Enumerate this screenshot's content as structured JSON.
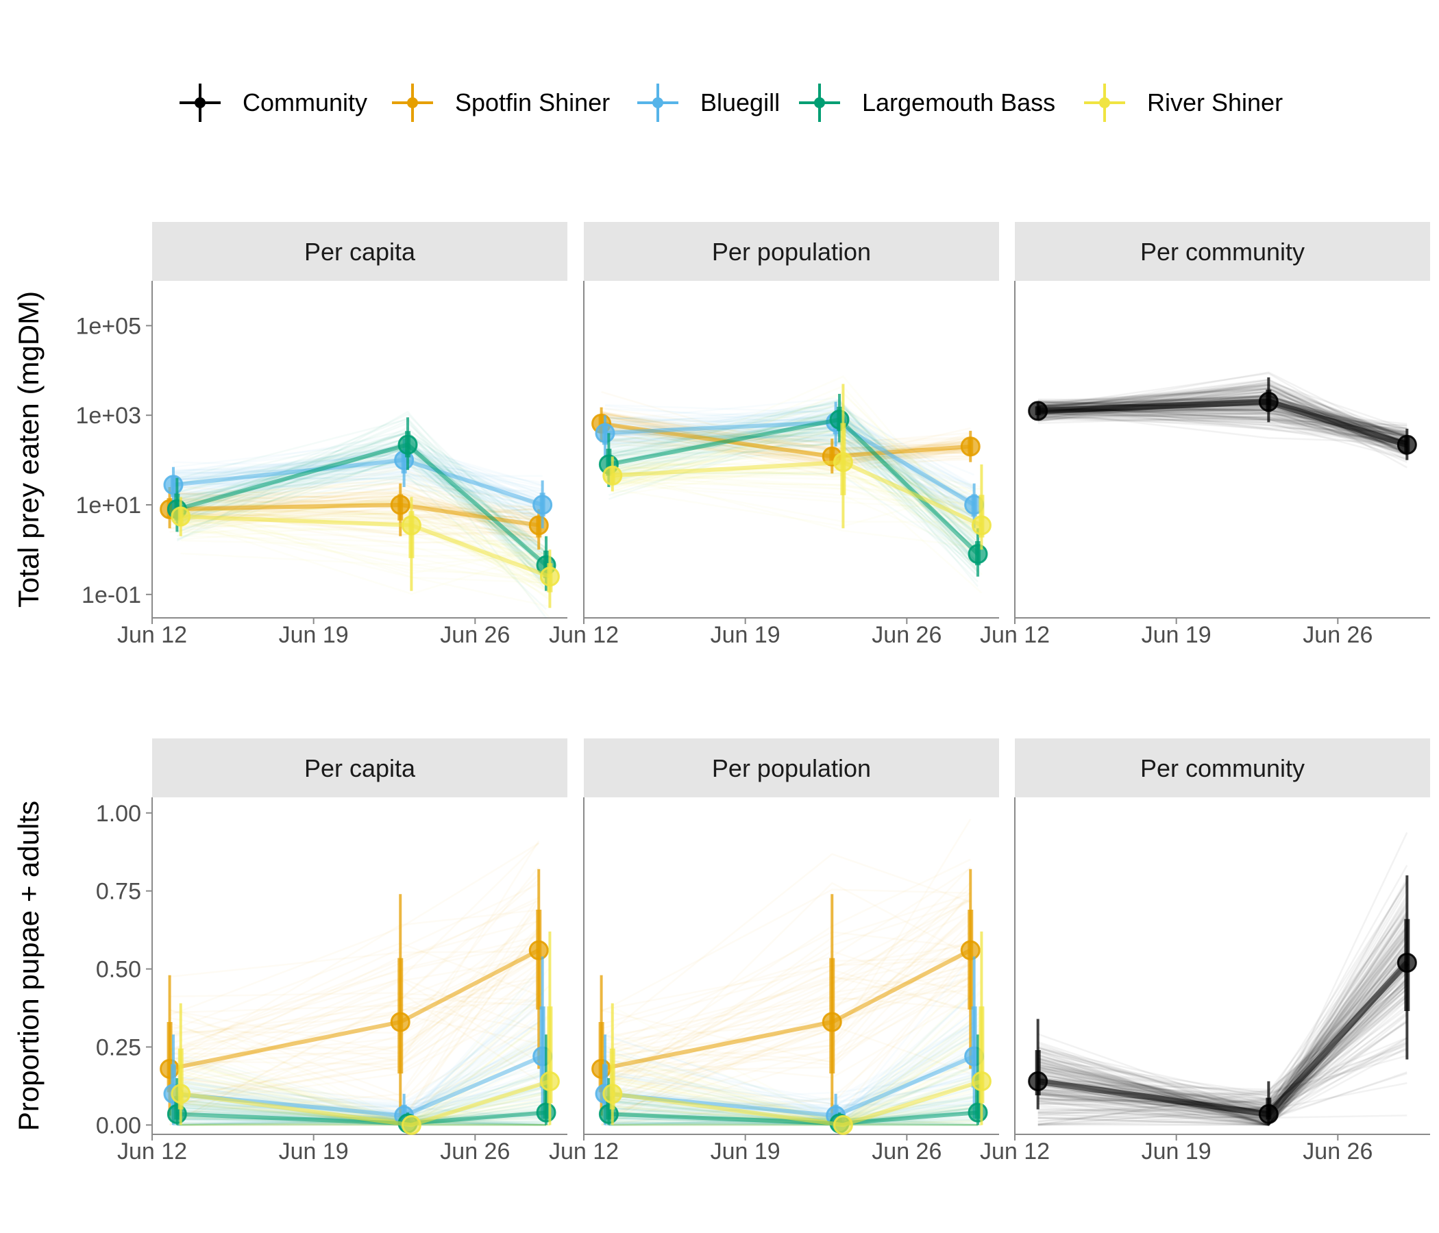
{
  "legend": {
    "items": [
      {
        "label": "Community",
        "color": "#000000"
      },
      {
        "label": "Spotfin Shiner",
        "color": "#E69F00"
      },
      {
        "label": "Bluegill",
        "color": "#56B4E9"
      },
      {
        "label": "Largemouth Bass",
        "color": "#009E73"
      },
      {
        "label": "River Shiner",
        "color": "#F0E442"
      }
    ]
  },
  "x_axis": {
    "ticks": [
      "Jun 12",
      "Jun 19",
      "Jun 26"
    ],
    "tick_dates": [
      "2021-06-12",
      "2021-06-19",
      "2021-06-26"
    ],
    "range": [
      "2021-06-12",
      "2021-06-30"
    ]
  },
  "rows": [
    {
      "ylabel": "Total prey eaten (mgDM)",
      "scale": "log10",
      "ylim": [
        0.03,
        1000000
      ],
      "yticks": [
        0.1,
        10,
        1000,
        100000
      ],
      "ytick_labels": [
        "1e-01",
        "1e+01",
        "1e+03",
        "1e+05"
      ]
    },
    {
      "ylabel": "Proportion pupae + adults",
      "scale": "linear",
      "ylim": [
        -0.03,
        1.05
      ],
      "yticks": [
        0,
        0.25,
        0.5,
        0.75,
        1
      ],
      "ytick_labels": [
        "0.00",
        "0.25",
        "0.50",
        "0.75",
        "1.00"
      ]
    }
  ],
  "chart_data": [
    {
      "type": "line",
      "panel": "Per capita",
      "ylabel": "Total prey eaten (mgDM)",
      "scale": "log10",
      "series": [
        {
          "name": "Spotfin Shiner",
          "color": "#E69F00",
          "x": [
            "2021-06-13",
            "2021-06-23",
            "2021-06-29"
          ],
          "y": [
            8,
            10,
            3.5
          ],
          "lo": [
            3,
            2,
            1
          ],
          "hi": [
            25,
            30,
            8
          ]
        },
        {
          "name": "Bluegill",
          "color": "#56B4E9",
          "x": [
            "2021-06-13",
            "2021-06-23",
            "2021-06-29"
          ],
          "y": [
            28,
            100,
            10
          ],
          "lo": [
            8,
            25,
            3
          ],
          "hi": [
            70,
            300,
            35
          ]
        },
        {
          "name": "Largemouth Bass",
          "color": "#009E73",
          "x": [
            "2021-06-13",
            "2021-06-23",
            "2021-06-29"
          ],
          "y": [
            8,
            220,
            0.45
          ],
          "lo": [
            2.5,
            60,
            0.12
          ],
          "hi": [
            40,
            900,
            2
          ]
        },
        {
          "name": "River Shiner",
          "color": "#F0E442",
          "x": [
            "2021-06-13",
            "2021-06-23",
            "2021-06-29"
          ],
          "y": [
            5.5,
            3.5,
            0.25
          ],
          "lo": [
            2,
            0.12,
            0.05
          ],
          "hi": [
            15,
            15,
            1
          ]
        }
      ]
    },
    {
      "type": "line",
      "panel": "Per population",
      "ylabel": "Total prey eaten (mgDM)",
      "scale": "log10",
      "series": [
        {
          "name": "Spotfin Shiner",
          "color": "#E69F00",
          "x": [
            "2021-06-13",
            "2021-06-23",
            "2021-06-29"
          ],
          "y": [
            650,
            120,
            200
          ],
          "lo": [
            250,
            50,
            90
          ],
          "hi": [
            1500,
            300,
            450
          ]
        },
        {
          "name": "Bluegill",
          "color": "#56B4E9",
          "x": [
            "2021-06-13",
            "2021-06-23",
            "2021-06-29"
          ],
          "y": [
            400,
            700,
            10
          ],
          "lo": [
            120,
            200,
            3
          ],
          "hi": [
            1000,
            2000,
            30
          ]
        },
        {
          "name": "Largemouth Bass",
          "color": "#009E73",
          "x": [
            "2021-06-13",
            "2021-06-23",
            "2021-06-29"
          ],
          "y": [
            80,
            800,
            0.8
          ],
          "lo": [
            25,
            250,
            0.25
          ],
          "hi": [
            400,
            3000,
            3
          ]
        },
        {
          "name": "River Shiner",
          "color": "#F0E442",
          "x": [
            "2021-06-13",
            "2021-06-23",
            "2021-06-29"
          ],
          "y": [
            45,
            90,
            3.5
          ],
          "lo": [
            20,
            3,
            1
          ],
          "hi": [
            120,
            5000,
            80
          ]
        }
      ]
    },
    {
      "type": "line",
      "panel": "Per community",
      "ylabel": "Total prey eaten (mgDM)",
      "scale": "log10",
      "series": [
        {
          "name": "Community",
          "color": "#000000",
          "x": [
            "2021-06-13",
            "2021-06-23",
            "2021-06-29"
          ],
          "y": [
            1250,
            2000,
            220
          ],
          "lo": [
            800,
            700,
            100
          ],
          "hi": [
            2000,
            7000,
            500
          ]
        }
      ]
    },
    {
      "type": "line",
      "panel": "Per capita",
      "ylabel": "Proportion pupae + adults",
      "scale": "linear",
      "series": [
        {
          "name": "Spotfin Shiner",
          "color": "#E69F00",
          "x": [
            "2021-06-13",
            "2021-06-23",
            "2021-06-29"
          ],
          "y": [
            0.18,
            0.33,
            0.56
          ],
          "lo": [
            0.03,
            0.0,
            0.18
          ],
          "hi": [
            0.48,
            0.74,
            0.82
          ]
        },
        {
          "name": "Bluegill",
          "color": "#56B4E9",
          "x": [
            "2021-06-13",
            "2021-06-23",
            "2021-06-29"
          ],
          "y": [
            0.1,
            0.03,
            0.22
          ],
          "lo": [
            0.0,
            0.0,
            0.02
          ],
          "hi": [
            0.29,
            0.1,
            0.54
          ]
        },
        {
          "name": "Largemouth Bass",
          "color": "#009E73",
          "x": [
            "2021-06-13",
            "2021-06-23",
            "2021-06-29"
          ],
          "y": [
            0.035,
            0.005,
            0.04
          ],
          "lo": [
            0.0,
            0.0,
            0.0
          ],
          "hi": [
            0.15,
            0.04,
            0.29
          ]
        },
        {
          "name": "River Shiner",
          "color": "#F0E442",
          "x": [
            "2021-06-13",
            "2021-06-23",
            "2021-06-29"
          ],
          "y": [
            0.1,
            0.0,
            0.14
          ],
          "lo": [
            0.0,
            0.0,
            0.0
          ],
          "hi": [
            0.39,
            0.0,
            0.62
          ]
        }
      ]
    },
    {
      "type": "line",
      "panel": "Per population",
      "ylabel": "Proportion pupae + adults",
      "scale": "linear",
      "series": [
        {
          "name": "Spotfin Shiner",
          "color": "#E69F00",
          "x": [
            "2021-06-13",
            "2021-06-23",
            "2021-06-29"
          ],
          "y": [
            0.18,
            0.33,
            0.56
          ],
          "lo": [
            0.03,
            0.0,
            0.18
          ],
          "hi": [
            0.48,
            0.74,
            0.82
          ]
        },
        {
          "name": "Bluegill",
          "color": "#56B4E9",
          "x": [
            "2021-06-13",
            "2021-06-23",
            "2021-06-29"
          ],
          "y": [
            0.1,
            0.03,
            0.22
          ],
          "lo": [
            0.0,
            0.0,
            0.02
          ],
          "hi": [
            0.29,
            0.1,
            0.54
          ]
        },
        {
          "name": "Largemouth Bass",
          "color": "#009E73",
          "x": [
            "2021-06-13",
            "2021-06-23",
            "2021-06-29"
          ],
          "y": [
            0.035,
            0.005,
            0.04
          ],
          "lo": [
            0.0,
            0.0,
            0.0
          ],
          "hi": [
            0.15,
            0.04,
            0.29
          ]
        },
        {
          "name": "River Shiner",
          "color": "#F0E442",
          "x": [
            "2021-06-13",
            "2021-06-23",
            "2021-06-29"
          ],
          "y": [
            0.1,
            0.0,
            0.14
          ],
          "lo": [
            0.0,
            0.0,
            0.0
          ],
          "hi": [
            0.39,
            0.0,
            0.62
          ]
        }
      ]
    },
    {
      "type": "line",
      "panel": "Per community",
      "ylabel": "Proportion pupae + adults",
      "scale": "linear",
      "series": [
        {
          "name": "Community",
          "color": "#000000",
          "x": [
            "2021-06-13",
            "2021-06-23",
            "2021-06-29"
          ],
          "y": [
            0.14,
            0.035,
            0.52
          ],
          "lo": [
            0.05,
            0.0,
            0.21
          ],
          "hi": [
            0.34,
            0.14,
            0.8
          ]
        }
      ]
    }
  ]
}
